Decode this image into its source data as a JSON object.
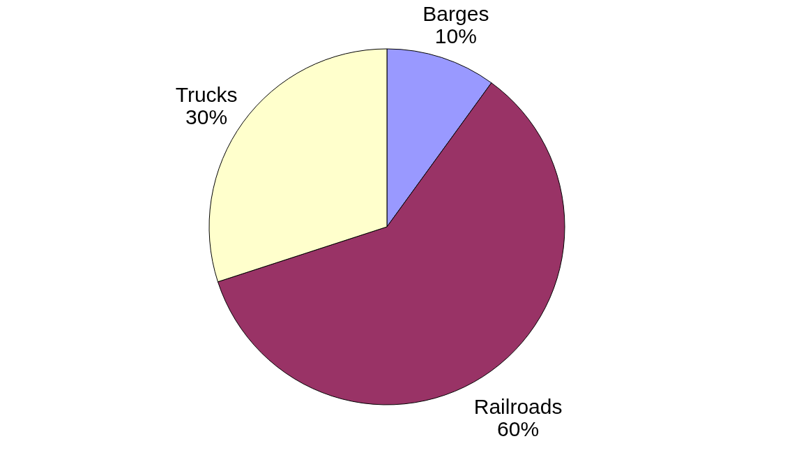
{
  "chart_data": {
    "type": "pie",
    "categories": [
      "Barges",
      "Railroads",
      "Trucks"
    ],
    "values": [
      10,
      60,
      30
    ],
    "value_labels": [
      "10%",
      "60%",
      "30%"
    ],
    "colors": [
      "#9999ff",
      "#993366",
      "#ffffcc"
    ],
    "legend": false
  }
}
